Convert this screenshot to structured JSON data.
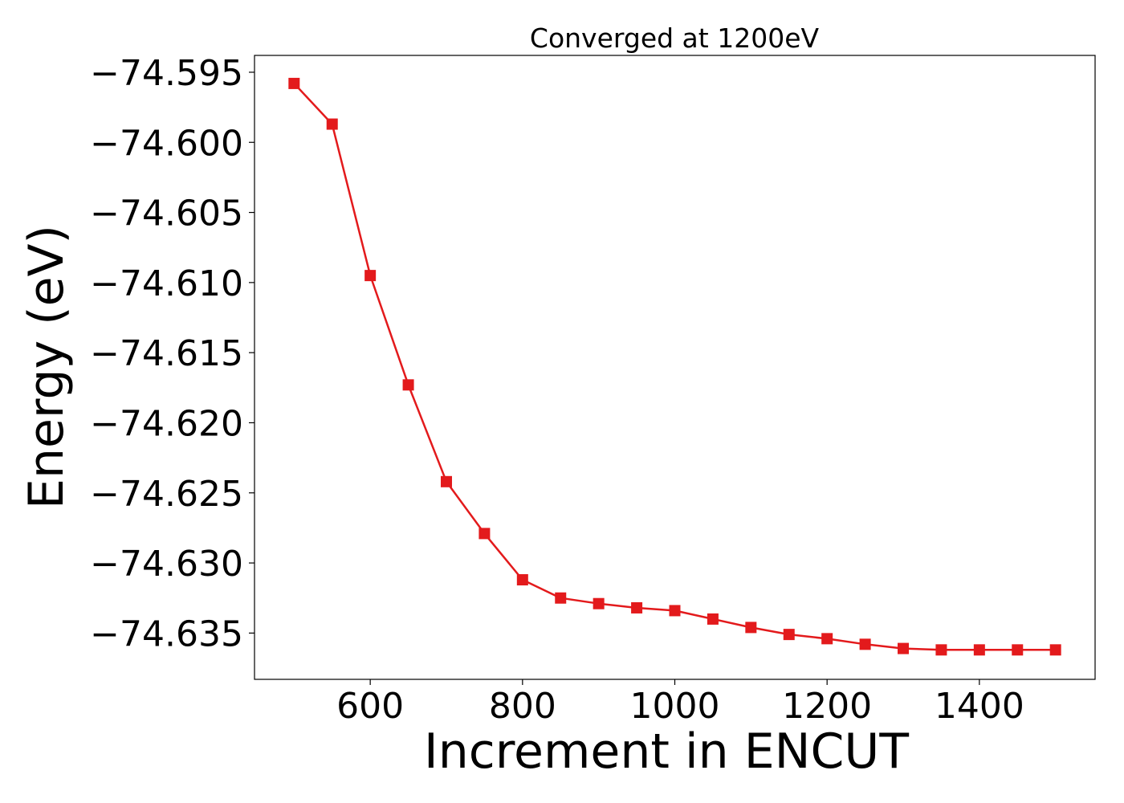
{
  "chart_data": {
    "type": "line",
    "title": "Converged at 1200eV",
    "xlabel": "Increment in ENCUT",
    "ylabel": "Energy (eV)",
    "xlim": [
      448,
      1552
    ],
    "ylim": [
      -74.6383,
      -74.5938
    ],
    "xticks": [
      600,
      800,
      1000,
      1200,
      1400
    ],
    "xtick_labels": [
      "600",
      "800",
      "1000",
      "1200",
      "1400"
    ],
    "yticks": [
      -74.595,
      -74.6,
      -74.605,
      -74.61,
      -74.615,
      -74.62,
      -74.625,
      -74.63,
      -74.635
    ],
    "ytick_labels": [
      "−74.595",
      "−74.600",
      "−74.605",
      "−74.610",
      "−74.615",
      "−74.620",
      "−74.625",
      "−74.630",
      "−74.635"
    ],
    "grid": false,
    "series": [
      {
        "color": "#e31a1c",
        "marker": "square",
        "x": [
          500,
          550,
          600,
          650,
          700,
          750,
          800,
          850,
          900,
          950,
          1000,
          1050,
          1100,
          1150,
          1200,
          1250,
          1300,
          1350,
          1400,
          1450,
          1500
        ],
        "y": [
          -74.5958,
          -74.5987,
          -74.6095,
          -74.6173,
          -74.6242,
          -74.6279,
          -74.6312,
          -74.6325,
          -74.6329,
          -74.6332,
          -74.6334,
          -74.634,
          -74.6346,
          -74.6351,
          -74.6354,
          -74.6358,
          -74.6361,
          -74.6362,
          -74.6362,
          -74.6362,
          -74.6362
        ]
      }
    ]
  }
}
